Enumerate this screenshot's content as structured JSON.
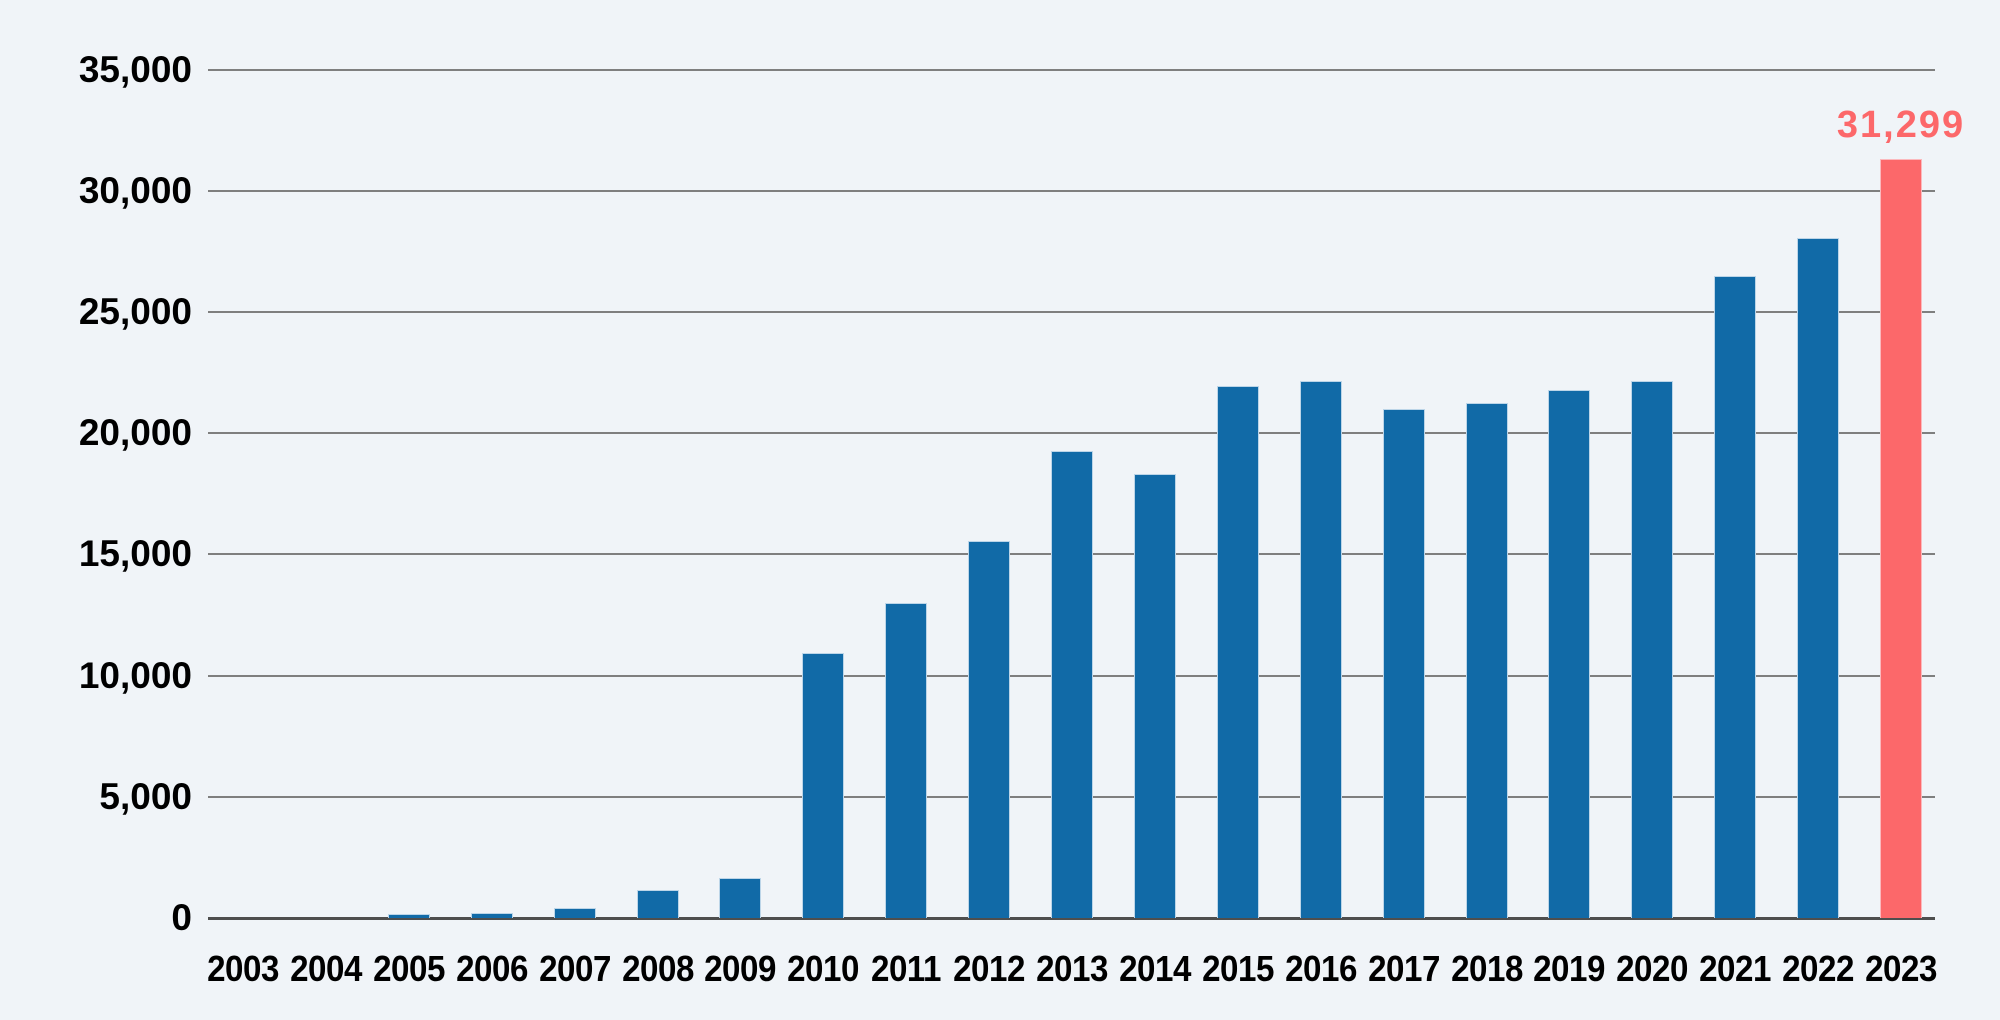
{
  "chart_data": {
    "type": "bar",
    "title": "",
    "xlabel": "",
    "ylabel": "",
    "categories": [
      "2003",
      "2004",
      "2005",
      "2006",
      "2007",
      "2008",
      "2009",
      "2010",
      "2011",
      "2012",
      "2013",
      "2014",
      "2015",
      "2016",
      "2017",
      "2018",
      "2019",
      "2020",
      "2021",
      "2022",
      "2023"
    ],
    "values": [
      0,
      0,
      150,
      225,
      430,
      1140,
      1650,
      10920,
      12980,
      15550,
      19270,
      18310,
      21950,
      22170,
      21000,
      21260,
      21770,
      22170,
      26480,
      28060,
      31299
    ],
    "highlight_index": 20,
    "annotation": {
      "text": "31,299",
      "applies_to": "2023"
    },
    "ylim": [
      0,
      35000
    ],
    "yticks": [
      0,
      5000,
      10000,
      15000,
      20000,
      25000,
      30000,
      35000
    ],
    "ytick_labels": [
      "0",
      "5,000",
      "10,000",
      "15,000",
      "20,000",
      "25,000",
      "30,000",
      "35,000"
    ],
    "grid": "horizontal",
    "legend": "none",
    "colors": {
      "background": "#f0f4f8",
      "bar": "#116aa7",
      "bar_edge": "#bcd5e8",
      "highlight_bar": "#fc686a",
      "highlight_bar_edge": "#fbb9bd",
      "annotation_text": "#fc686a",
      "gridline": "#7f7f7f",
      "baseline": "#4e4e4e",
      "axis_text": "#000000"
    }
  }
}
